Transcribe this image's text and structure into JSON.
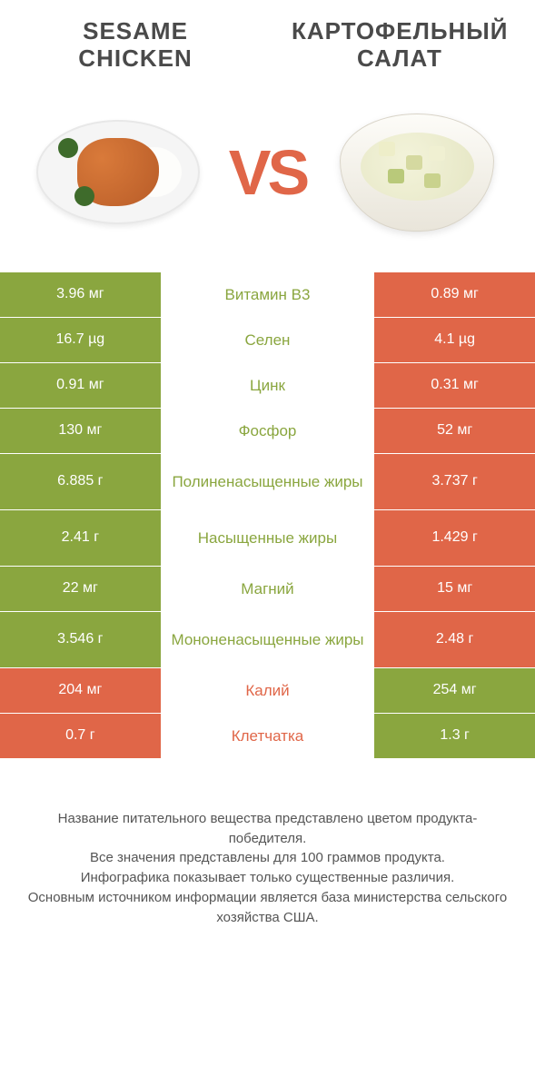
{
  "header": {
    "left_title": "SESAME CHICKEN",
    "right_title": "КАРТОФЕЛЬНЫЙ САЛАТ",
    "vs": "VS"
  },
  "colors": {
    "green": "#8aa63f",
    "orange": "#e06648",
    "text": "#333333",
    "background": "#ffffff"
  },
  "rows": [
    {
      "left": "3.96 мг",
      "label": "Витамин B3",
      "right": "0.89 мг",
      "winner": "left",
      "tall": false
    },
    {
      "left": "16.7 µg",
      "label": "Селен",
      "right": "4.1 µg",
      "winner": "left",
      "tall": false
    },
    {
      "left": "0.91 мг",
      "label": "Цинк",
      "right": "0.31 мг",
      "winner": "left",
      "tall": false
    },
    {
      "left": "130 мг",
      "label": "Фосфор",
      "right": "52 мг",
      "winner": "left",
      "tall": false
    },
    {
      "left": "6.885 г",
      "label": "Полиненасыщенные жиры",
      "right": "3.737 г",
      "winner": "left",
      "tall": true
    },
    {
      "left": "2.41 г",
      "label": "Насыщенные жиры",
      "right": "1.429 г",
      "winner": "left",
      "tall": true
    },
    {
      "left": "22 мг",
      "label": "Магний",
      "right": "15 мг",
      "winner": "left",
      "tall": false
    },
    {
      "left": "3.546 г",
      "label": "Мононенасыщенные жиры",
      "right": "2.48 г",
      "winner": "left",
      "tall": true
    },
    {
      "left": "204 мг",
      "label": "Калий",
      "right": "254 мг",
      "winner": "right",
      "tall": false
    },
    {
      "left": "0.7 г",
      "label": "Клетчатка",
      "right": "1.3 г",
      "winner": "right",
      "tall": false
    }
  ],
  "footer": {
    "line1": "Название питательного вещества представлено цветом продукта-победителя.",
    "line2": "Все значения представлены для 100 граммов продукта.",
    "line3": "Инфографика показывает только существенные различия.",
    "line4": "Основным источником информации является база министерства сельского хозяйства США."
  }
}
